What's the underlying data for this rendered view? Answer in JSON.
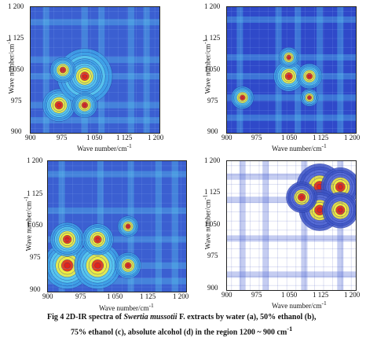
{
  "panels": [
    {
      "id": "a",
      "x_ticks": [
        "900",
        "975",
        "1 050",
        "1 125",
        "1 200"
      ],
      "y_ticks": [
        "1 200",
        "1 125",
        "1 050",
        "975",
        "900"
      ],
      "xlabel": "Wave number/cm",
      "xlabel_sup": "-1",
      "ylabel": "Wave number/cm",
      "ylabel_sup": "-1",
      "colors": {
        "bg": "#3b5fd1",
        "mid": "#59c9ef",
        "hot": "#f7ef3a",
        "peak": "#e0201b"
      }
    },
    {
      "id": "b",
      "x_ticks": [
        "900",
        "975",
        "1 050",
        "1 125",
        "1 200"
      ],
      "y_ticks": [
        "1 200",
        "1 125",
        "1 050",
        "975",
        "900"
      ],
      "xlabel": "Wave number/cm",
      "xlabel_sup": "-1",
      "ylabel": "Wave number/cm",
      "ylabel_sup": "-1",
      "colors": {
        "bg": "#2f49c9",
        "mid": "#59c9ef",
        "hot": "#f7ef3a",
        "peak": "#e0201b"
      }
    },
    {
      "id": "c",
      "x_ticks": [
        "900",
        "975",
        "1 050",
        "1 125",
        "1 200"
      ],
      "y_ticks": [
        "1 200",
        "1 125",
        "1 050",
        "975",
        "900"
      ],
      "xlabel": "Wave number/cm",
      "xlabel_sup": "-1",
      "ylabel": "Wave number/cm",
      "ylabel_sup": "-1",
      "colors": {
        "bg": "#3b5fd1",
        "mid": "#59c9ef",
        "hot": "#f7ef3a",
        "peak": "#e0201b"
      }
    },
    {
      "id": "d",
      "x_ticks": [
        "900",
        "975",
        "1 050",
        "1 125",
        "1 200"
      ],
      "y_ticks": [
        "1 200",
        "1 125",
        "1 050",
        "975",
        "900"
      ],
      "xlabel": "Wave number/cm",
      "xlabel_sup": "-1",
      "ylabel": "Wave number/cm",
      "ylabel_sup": "-1",
      "colors": {
        "bg": "#ffffff",
        "mid": "#5a6fd8",
        "hot": "#f7ef3a",
        "peak": "#e0201b"
      }
    }
  ],
  "caption": {
    "prefix": "Fig 4   2D-IR spectra of ",
    "species": "Swertia mussotii",
    "line1_rest": " F. extracts by water (a), 50% ethanol (b),",
    "line2": "75% ethanol (c), absolute alcohol (d) in the region 1200 ~ 900 cm",
    "line2_sup": "-1"
  }
}
